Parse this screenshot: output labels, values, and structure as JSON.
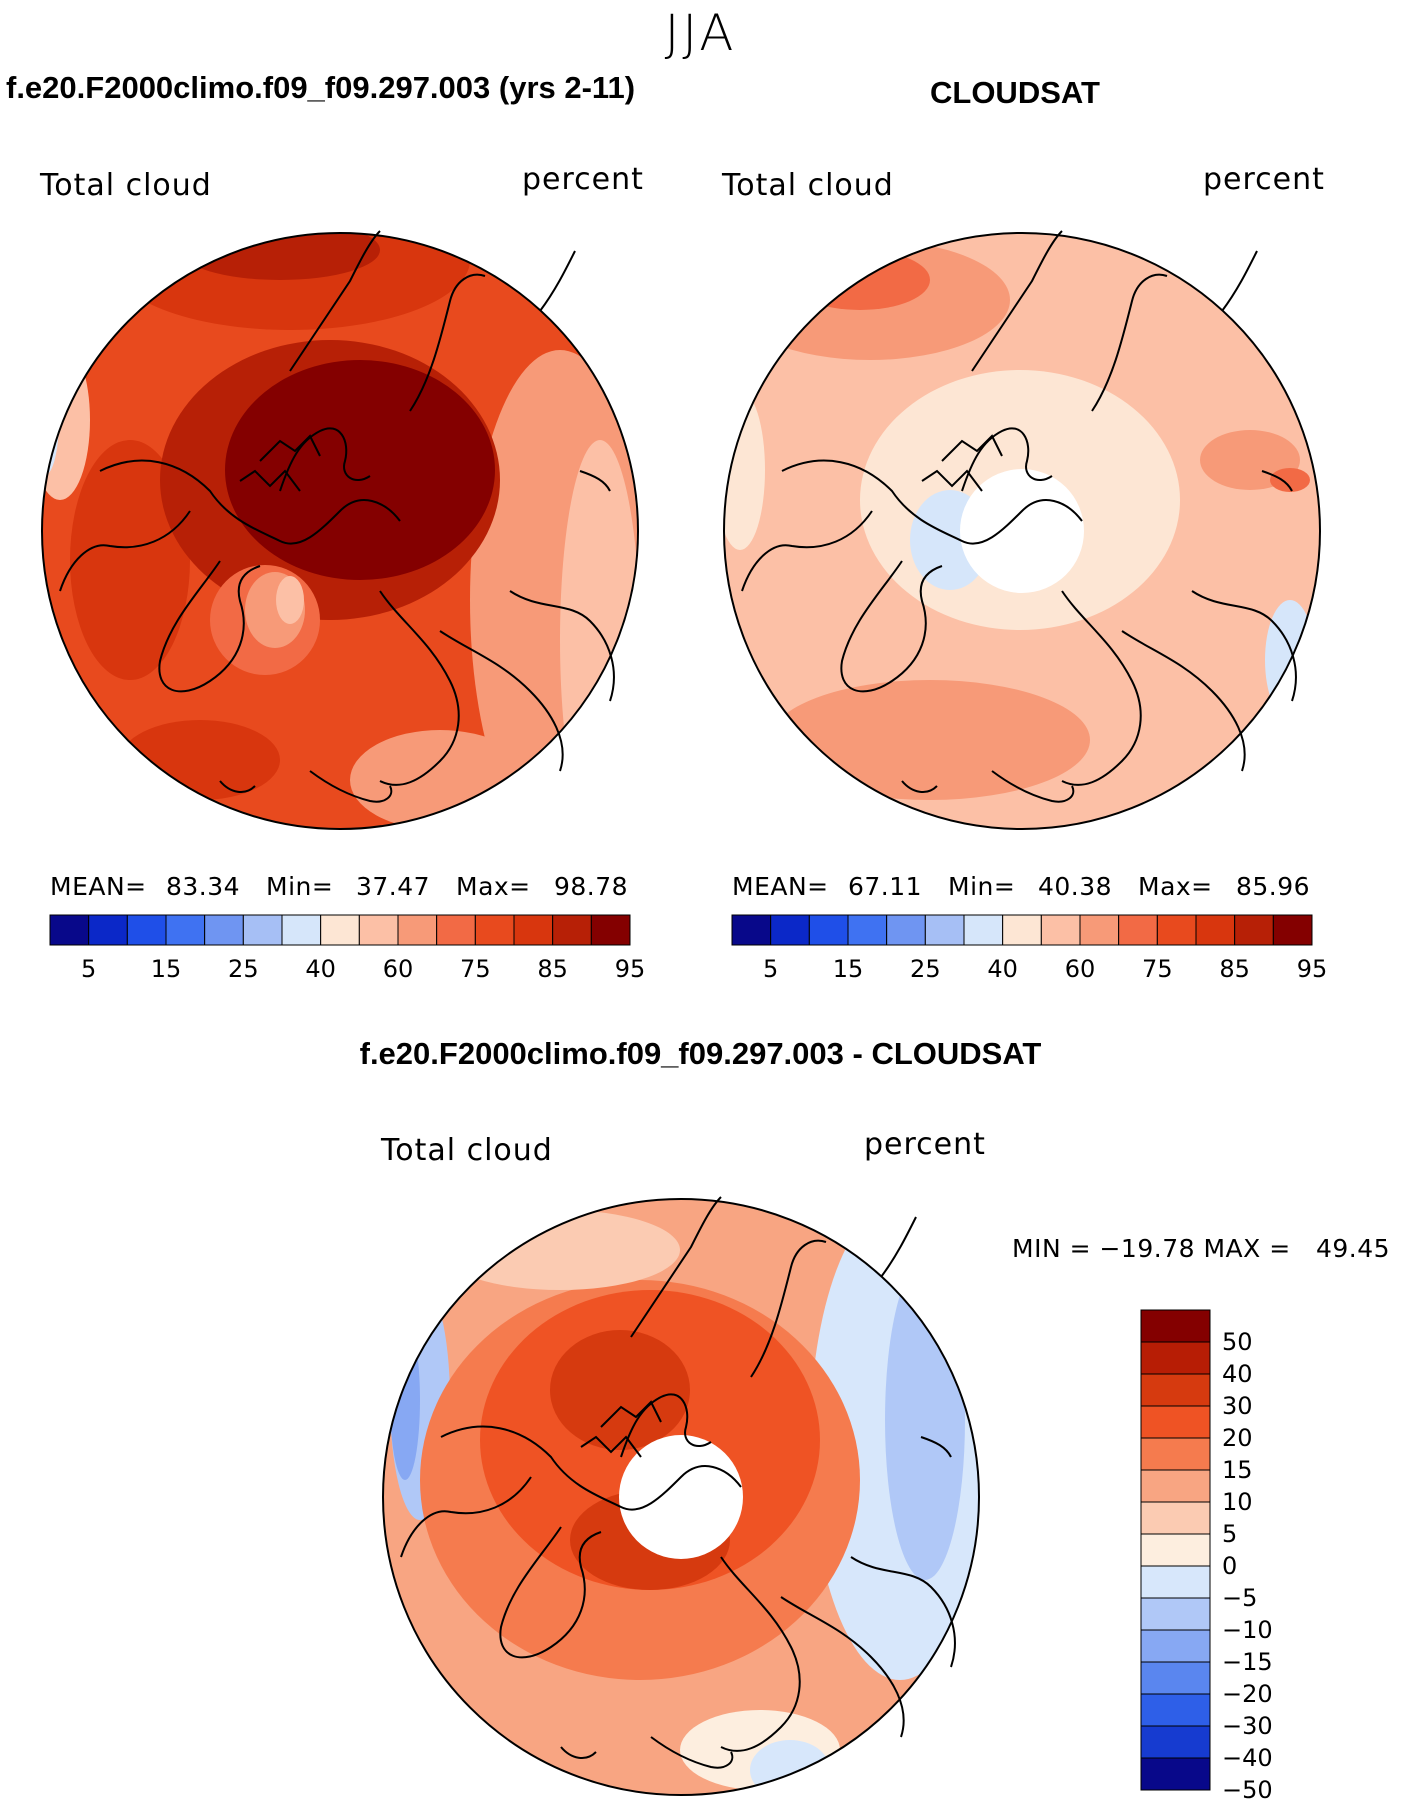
{
  "season": "JJA",
  "panels": [
    {
      "id": "model",
      "case_title": "f.e20.F2000climo.f09_f09.297.003 (yrs 2-11)",
      "variable": "Total cloud",
      "units": "percent",
      "mean_label": "MEAN=",
      "mean": "83.34",
      "min_label": "Min=",
      "min": "37.47",
      "max_label": "Max=",
      "max": "98.78",
      "colorbar_ticks": [
        "5",
        "15",
        "25",
        "40",
        "60",
        "75",
        "85",
        "95"
      ]
    },
    {
      "id": "obs",
      "case_title": "CLOUDSAT",
      "variable": "Total cloud",
      "units": "percent",
      "mean_label": "MEAN=",
      "mean": "67.11",
      "min_label": "Min=",
      "min": "40.38",
      "max_label": "Max=",
      "max": "85.96",
      "colorbar_ticks": [
        "5",
        "15",
        "25",
        "40",
        "60",
        "75",
        "85",
        "95"
      ]
    }
  ],
  "difference": {
    "case_title": "f.e20.F2000climo.f09_f09.297.003 - CLOUDSAT",
    "variable": "Total cloud",
    "units": "percent",
    "minmax_text": "MIN = −19.78 MAX =   49.45",
    "colorbar_labels": [
      "50",
      "40",
      "30",
      "20",
      "15",
      "10",
      "5",
      "0",
      "−5",
      "−10",
      "−15",
      "−20",
      "−30",
      "−40",
      "−50"
    ]
  },
  "colors": {
    "abs_scale": [
      "#08088a",
      "#0b28c8",
      "#1f4fe8",
      "#3f72f2",
      "#6f95f2",
      "#a6bff5",
      "#d6e6fa",
      "#fde6d4",
      "#fcc0a6",
      "#f79a78",
      "#f26a45",
      "#e84a1e",
      "#d8360e",
      "#b72006",
      "#840000"
    ],
    "diff_scale": [
      "#840000",
      "#b71d05",
      "#d63a0f",
      "#ef5324",
      "#f57b4e",
      "#f8a582",
      "#fbcbb2",
      "#fdeedf",
      "#d7e7fb",
      "#b0c8f7",
      "#87a8f3",
      "#5a86ef",
      "#2e5fe8",
      "#163bd0",
      "#08088a"
    ]
  }
}
